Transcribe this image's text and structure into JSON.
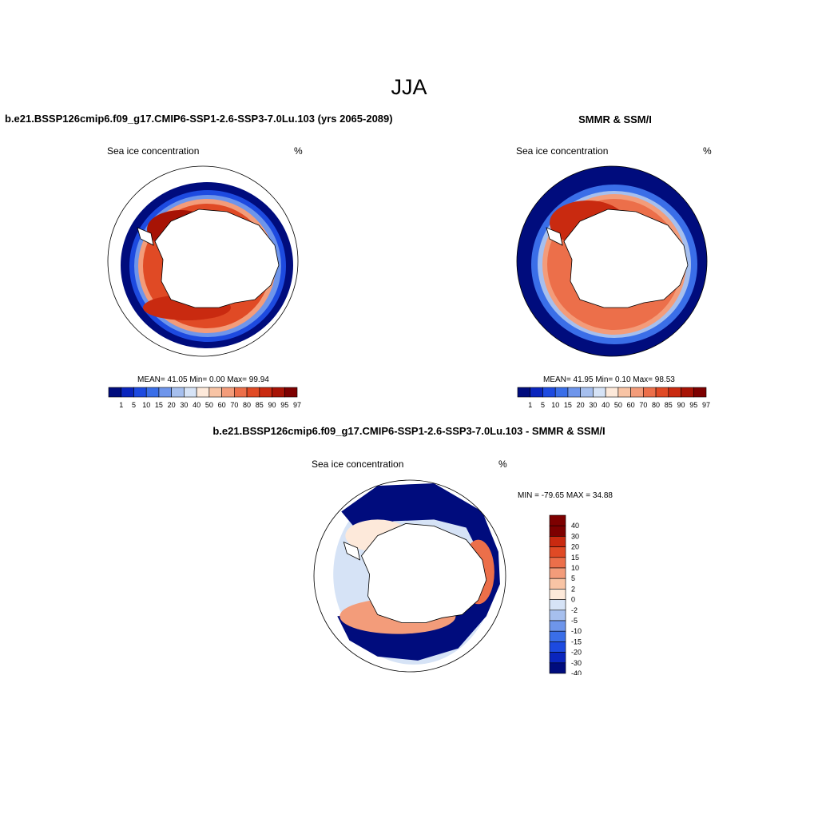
{
  "title": "JJA",
  "colors": {
    "abs": [
      "#000c7d",
      "#0a25bd",
      "#1d4ae0",
      "#3a6ee8",
      "#6e95eb",
      "#a6bfee",
      "#d6e3f6",
      "#fde9da",
      "#f8c4a5",
      "#f39c7a",
      "#ec6f4a",
      "#e04a25",
      "#c92a10",
      "#a71305",
      "#7d0000"
    ],
    "diff": [
      "#000c7d",
      "#0a25bd",
      "#1d4ae0",
      "#3a6ee8",
      "#6e95eb",
      "#a6bfee",
      "#d6e3f6",
      "#fde9da",
      "#f8c4a5",
      "#f39c7a",
      "#ec6f4a",
      "#e04a25",
      "#c92a10",
      "#7d0000"
    ]
  },
  "panels": [
    {
      "title": "b.e21.BSSP126cmip6.f09_g17.CMIP6-SSP1-2.6-SSP3-7.0Lu.103 (yrs 2065-2089)",
      "left_label": "Sea ice concentration",
      "right_label": "%",
      "stats": "MEAN=  41.05  Min=   0.00  Max=  99.94"
    },
    {
      "title": "SMMR & SSM/I",
      "left_label": "Sea ice concentration",
      "right_label": "%",
      "stats": "MEAN=  41.95  Min=   0.10  Max=  98.53"
    },
    {
      "title": "b.e21.BSSP126cmip6.f09_g17.CMIP6-SSP1-2.6-SSP3-7.0Lu.103 - SMMR & SSM/I",
      "left_label": "Sea ice concentration",
      "right_label": "%",
      "stats": "MIN = -79.65 MAX =  34.88"
    }
  ],
  "colorbar_abs_labels": [
    "1",
    "5",
    "10",
    "15",
    "20",
    "30",
    "40",
    "50",
    "60",
    "70",
    "80",
    "85",
    "90",
    "95",
    "97"
  ],
  "colorbar_diff_labels": [
    "40",
    "30",
    "20",
    "15",
    "10",
    "5",
    "2",
    "0",
    "-2",
    "-5",
    "-10",
    "-15",
    "-20",
    "-30",
    "-40"
  ]
}
